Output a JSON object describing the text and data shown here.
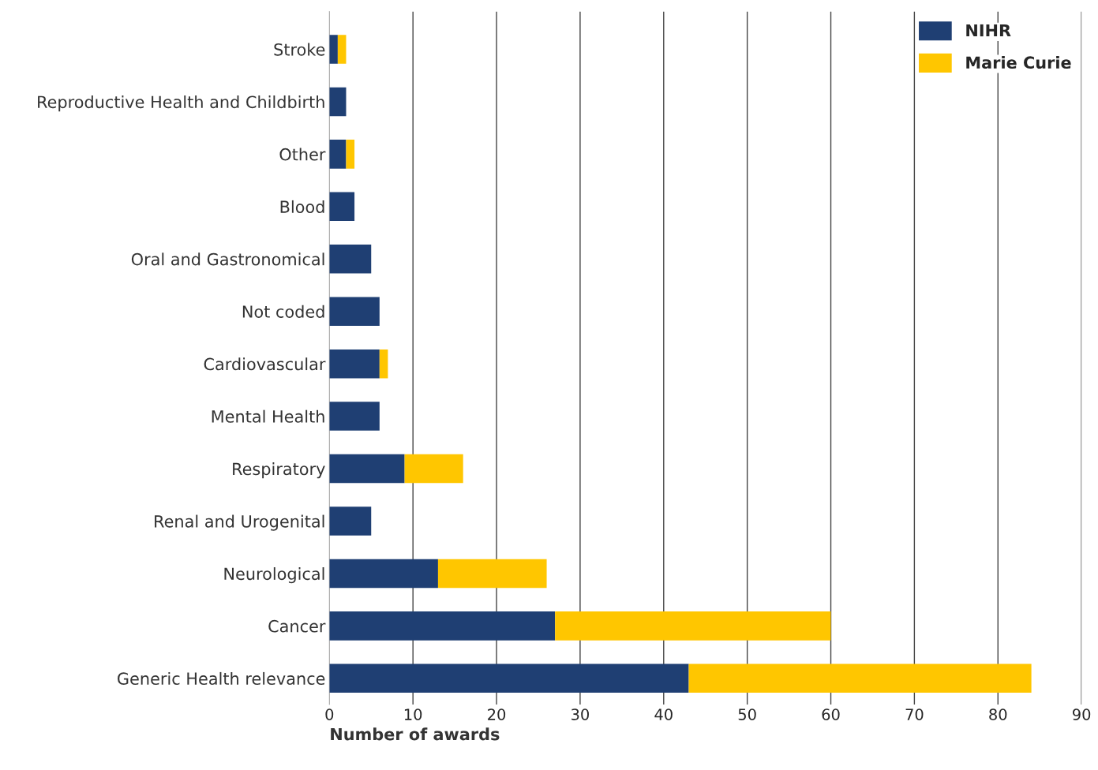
{
  "chart_data": {
    "type": "bar",
    "orientation": "horizontal",
    "stacked": true,
    "xlabel": "Number of awards",
    "categories": [
      "Stroke",
      "Reproductive Health and Childbirth",
      "Other",
      "Blood",
      "Oral and Gastronomical",
      "Not coded",
      "Cardiovascular",
      "Mental Health",
      "Respiratory",
      "Renal and Urogenital",
      "Neurological",
      "Cancer",
      "Generic Health relevance"
    ],
    "series": [
      {
        "name": "NIHR",
        "color": "#1f3f73",
        "values": [
          1,
          2,
          2,
          3,
          5,
          6,
          6,
          6,
          9,
          5,
          13,
          27,
          43
        ]
      },
      {
        "name": "Marie Curie",
        "color": "#ffc600",
        "values": [
          1,
          0,
          1,
          0,
          0,
          0,
          1,
          0,
          7,
          0,
          13,
          33,
          41
        ]
      }
    ],
    "xlim": [
      0,
      90
    ],
    "xticks": [
      0,
      10,
      20,
      30,
      40,
      50,
      60,
      70,
      80,
      90
    ],
    "grid": "x",
    "legend": "top right"
  }
}
